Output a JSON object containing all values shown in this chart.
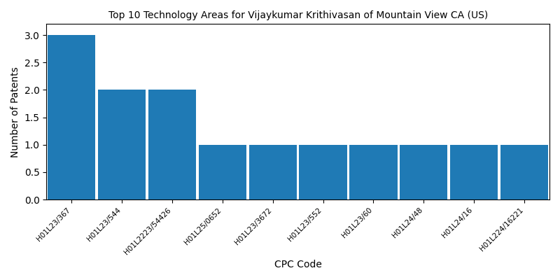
{
  "title": "Top 10 Technology Areas for Vijaykumar Krithivasan of Mountain View CA (US)",
  "categories": [
    "H01L23/367",
    "H01L23/544",
    "H01L2223/54426",
    "H01L25/0652",
    "H01L23/3672",
    "H01L23/552",
    "H01L23/60",
    "H01L24/48",
    "H01L24/16",
    "H01L224/16221"
  ],
  "values": [
    3,
    2,
    2,
    1,
    1,
    1,
    1,
    1,
    1,
    1
  ],
  "bar_color": "#1f7ab5",
  "xlabel": "CPC Code",
  "ylabel": "Number of Patents",
  "ylim": [
    0,
    3.2
  ],
  "yticks": [
    0.0,
    0.5,
    1.0,
    1.5,
    2.0,
    2.5,
    3.0
  ],
  "bar_width": 0.95,
  "tick_fontsize": 7.5,
  "label_fontsize": 10,
  "title_fontsize": 10
}
